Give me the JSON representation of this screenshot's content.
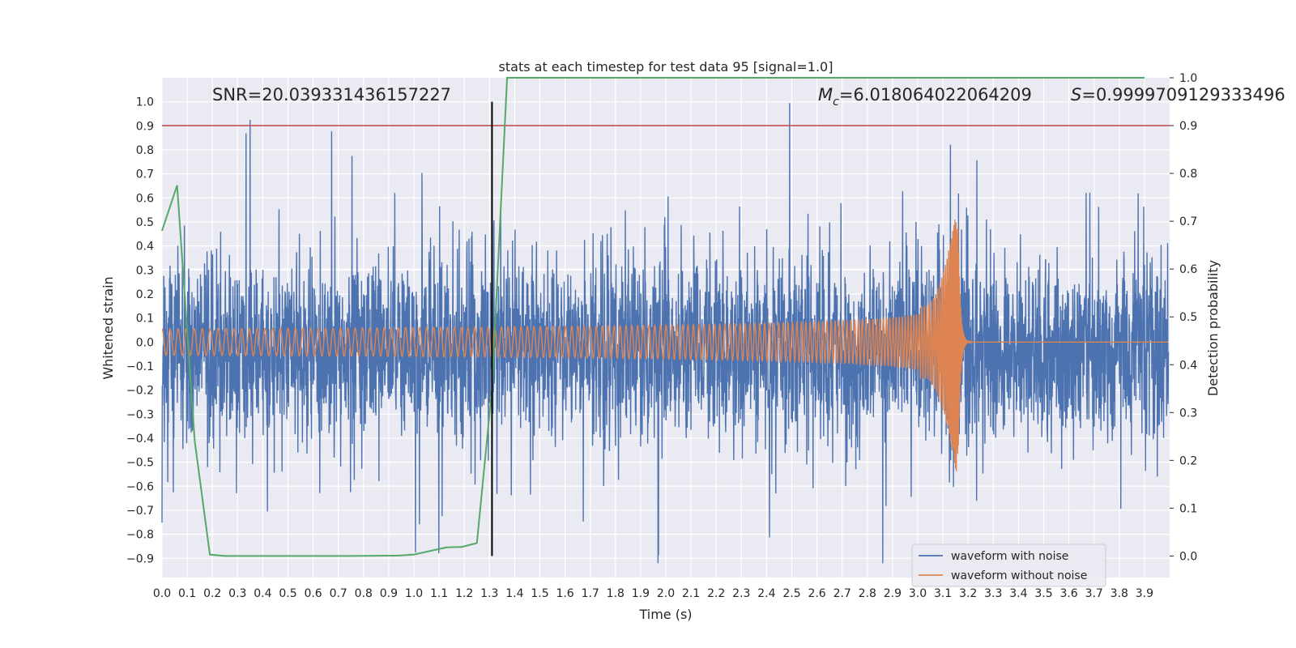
{
  "chart_data": {
    "type": "line",
    "title": "stats at each timestep for test data 95 [signal=1.0]",
    "xlabel": "Time (s)",
    "ylabel": "Whitened strain",
    "ylabel_right": "Detection probability",
    "xlim": [
      0.0,
      4.0
    ],
    "ylim": [
      -0.98,
      1.1
    ],
    "ylim_right": [
      -0.045,
      1.0
    ],
    "x_ticks": [
      "0.0",
      "0.1",
      "0.2",
      "0.3",
      "0.4",
      "0.5",
      "0.6",
      "0.7",
      "0.8",
      "0.9",
      "1.0",
      "1.1",
      "1.2",
      "1.3",
      "1.4",
      "1.5",
      "1.6",
      "1.7",
      "1.8",
      "1.9",
      "2.0",
      "2.1",
      "2.2",
      "2.3",
      "2.4",
      "2.5",
      "2.6",
      "2.7",
      "2.8",
      "2.9",
      "3.0",
      "3.1",
      "3.2",
      "3.3",
      "3.4",
      "3.5",
      "3.6",
      "3.7",
      "3.8",
      "3.9"
    ],
    "y_ticks": [
      "1.0",
      "0.9",
      "0.8",
      "0.7",
      "0.6",
      "0.5",
      "0.4",
      "0.3",
      "0.2",
      "0.1",
      "0.0",
      "−0.1",
      "−0.2",
      "−0.3",
      "−0.4",
      "−0.5",
      "−0.6",
      "−0.7",
      "−0.8",
      "−0.9"
    ],
    "y_ticks_right": [
      "1.0",
      "0.9",
      "0.8",
      "0.7",
      "0.6",
      "0.5",
      "0.4",
      "0.3",
      "0.2",
      "0.1",
      "0.0"
    ],
    "grid": true,
    "legend_position": "bottom-right",
    "annotations": {
      "snr": "SNR=20.039331436157227",
      "mc_symbol": "M",
      "mc_sub": "c",
      "mc_value": "=6.018064022064209",
      "s_symbol": "S",
      "s_value": "=0.9999709129333496"
    },
    "series": [
      {
        "name": "waveform with noise",
        "color": "#4c72b0",
        "axis": "left",
        "description_range": [
          -0.92,
          1.0
        ]
      },
      {
        "name": "waveform without noise",
        "color": "#dd8452",
        "axis": "left",
        "chirp": {
          "start_amplitude": 0.055,
          "end_amplitude": 0.59,
          "merger_time": 3.16
        }
      },
      {
        "axis": "right",
        "color": "#55a868",
        "x": [
          0.0,
          0.06,
          0.13,
          0.19,
          0.25,
          0.5,
          0.75,
          0.94,
          1.0,
          1.06,
          1.13,
          1.19,
          1.25,
          1.31,
          1.37,
          1.5,
          2.0,
          3.0,
          3.9
        ],
        "y": [
          0.68,
          0.775,
          0.24,
          0.003,
          0.0,
          0.0,
          0.0,
          0.001,
          0.003,
          0.01,
          0.018,
          0.019,
          0.027,
          0.35,
          1.0,
          1.0,
          1.0,
          1.0,
          1.0
        ]
      }
    ],
    "threshold_line": {
      "axis": "right",
      "value": 0.9,
      "color": "#c44e52"
    },
    "vertical_line": {
      "x": 1.31,
      "color": "#000000"
    }
  }
}
